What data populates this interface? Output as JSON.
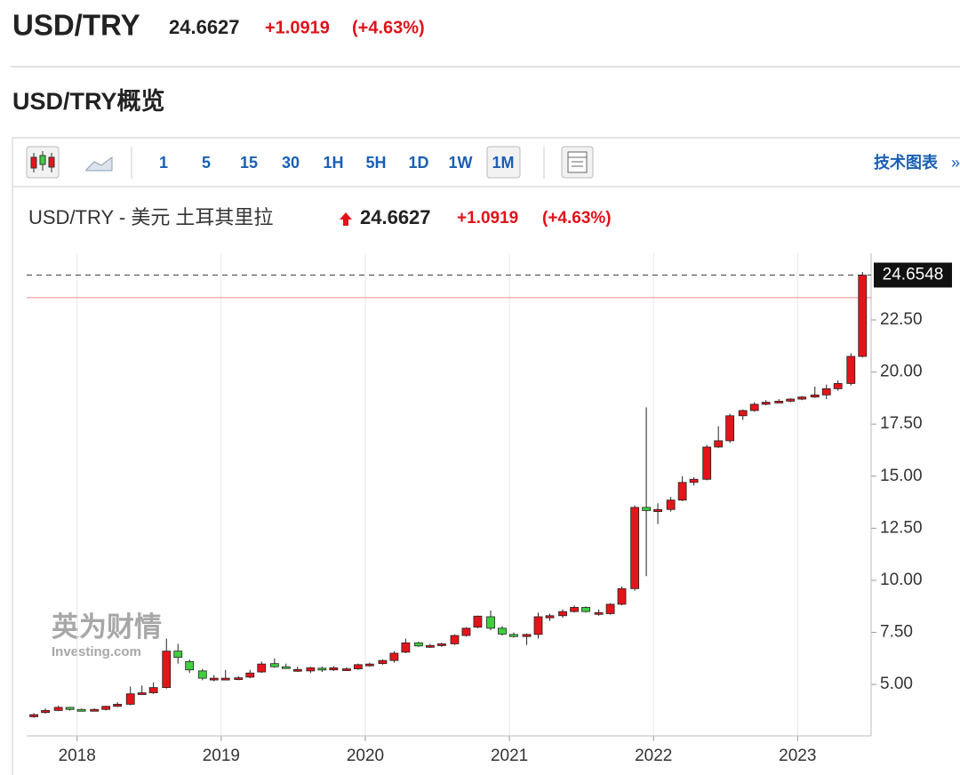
{
  "header": {
    "symbol": "USD/TRY",
    "price": "24.6627",
    "change": "+1.0919",
    "change_pct": "(+4.63%)"
  },
  "section_title": "USD/TRY概览",
  "toolbar": {
    "intervals": [
      "1",
      "5",
      "15",
      "30",
      "1H",
      "5H",
      "1D",
      "1W",
      "1M"
    ],
    "active_interval": "1M",
    "link": "技术图表",
    "link_arrow": "»"
  },
  "chart_data": {
    "type": "candlestick",
    "title": "USD/TRY - 美元 土耳其里拉",
    "quote": {
      "price": "24.6627",
      "change": "+1.0919",
      "change_pct": "(+4.63%)"
    },
    "watermark": [
      "英为财情",
      "Investing.com"
    ],
    "up_color": "#e3151b",
    "down_color": "#3fcf3f",
    "grid": "x",
    "y_axis_side": "right",
    "last_price": 24.6548,
    "ref_line": 23.57,
    "xlim": [
      2017.65,
      2023.51
    ],
    "xticks": [
      2018,
      2019,
      2020,
      2021,
      2022,
      2023
    ],
    "ylim": [
      2.53,
      25.7
    ],
    "yticks": [
      {
        "value": 5,
        "label": "5.00"
      },
      {
        "value": 7.5,
        "label": "7.50"
      },
      {
        "value": 10,
        "label": "10.00"
      },
      {
        "value": 12.5,
        "label": "12.50"
      },
      {
        "value": 15,
        "label": "15.00"
      },
      {
        "value": 17.5,
        "label": "17.50"
      },
      {
        "value": 20,
        "label": "20.00"
      },
      {
        "value": 22.5,
        "label": "22.50"
      }
    ],
    "x": [
      2017.7,
      2017.78,
      2017.87,
      2017.95,
      2018.03,
      2018.12,
      2018.2,
      2018.28,
      2018.37,
      2018.45,
      2018.53,
      2018.62,
      2018.7,
      2018.78,
      2018.87,
      2018.95,
      2019.03,
      2019.12,
      2019.2,
      2019.28,
      2019.37,
      2019.45,
      2019.53,
      2019.62,
      2019.7,
      2019.78,
      2019.87,
      2019.95,
      2020.03,
      2020.12,
      2020.2,
      2020.28,
      2020.37,
      2020.45,
      2020.53,
      2020.62,
      2020.7,
      2020.78,
      2020.87,
      2020.95,
      2021.03,
      2021.12,
      2021.2,
      2021.28,
      2021.37,
      2021.45,
      2021.53,
      2021.62,
      2021.7,
      2021.78,
      2021.87,
      2021.95,
      2022.03,
      2022.12,
      2022.2,
      2022.28,
      2022.37,
      2022.45,
      2022.53,
      2022.62,
      2022.7,
      2022.78,
      2022.87,
      2022.95,
      2023.03,
      2023.12,
      2023.2,
      2023.28,
      2023.37,
      2023.45
    ],
    "open": [
      3.45,
      3.65,
      3.75,
      3.9,
      3.8,
      3.77,
      3.8,
      3.95,
      4.05,
      4.55,
      4.6,
      4.85,
      6.6,
      6.1,
      5.65,
      5.25,
      5.25,
      5.25,
      5.35,
      5.6,
      6.0,
      5.85,
      5.68,
      5.65,
      5.78,
      5.7,
      5.7,
      5.75,
      5.95,
      6.0,
      6.15,
      6.55,
      7.0,
      6.83,
      6.87,
      6.95,
      7.35,
      7.75,
      8.25,
      7.7,
      7.4,
      7.3,
      7.4,
      8.2,
      8.3,
      8.5,
      8.7,
      8.4,
      8.4,
      8.85,
      9.6,
      13.5,
      13.3,
      13.4,
      13.85,
      14.7,
      14.85,
      16.4,
      16.7,
      17.9,
      18.15,
      18.45,
      18.55,
      18.6,
      18.7,
      18.8,
      18.9,
      19.2,
      19.45,
      20.75
    ],
    "high": [
      3.62,
      3.85,
      3.98,
      3.92,
      3.84,
      3.85,
      3.98,
      4.15,
      4.9,
      4.95,
      5.1,
      7.2,
      6.95,
      6.2,
      5.75,
      5.45,
      5.7,
      5.4,
      5.7,
      6.1,
      6.25,
      6.0,
      5.85,
      5.85,
      5.85,
      5.88,
      5.82,
      6.0,
      6.05,
      6.2,
      6.6,
      7.2,
      7.05,
      6.95,
      7.0,
      7.4,
      7.75,
      8.3,
      8.55,
      7.8,
      7.5,
      7.45,
      8.45,
      8.4,
      8.6,
      8.8,
      8.75,
      8.6,
      8.9,
      9.7,
      13.6,
      18.3,
      13.7,
      14.0,
      15.0,
      14.95,
      16.5,
      17.4,
      18.0,
      18.2,
      18.55,
      18.65,
      18.7,
      18.75,
      18.85,
      19.3,
      19.4,
      19.6,
      20.9,
      24.8
    ],
    "low": [
      3.4,
      3.6,
      3.72,
      3.74,
      3.7,
      3.72,
      3.75,
      3.92,
      4.0,
      4.5,
      4.55,
      4.8,
      6.0,
      5.55,
      5.2,
      5.15,
      5.2,
      5.2,
      5.3,
      5.55,
      5.8,
      5.75,
      5.6,
      5.55,
      5.6,
      5.65,
      5.65,
      5.7,
      5.85,
      5.95,
      6.05,
      6.5,
      6.8,
      6.75,
      6.8,
      6.9,
      7.3,
      7.7,
      7.6,
      7.35,
      7.25,
      6.9,
      7.2,
      8.05,
      8.2,
      8.45,
      8.45,
      8.3,
      8.35,
      8.8,
      9.5,
      10.2,
      12.7,
      13.3,
      13.8,
      14.55,
      14.8,
      16.35,
      16.6,
      17.7,
      18.1,
      18.4,
      18.5,
      18.55,
      18.65,
      18.75,
      18.7,
      19.1,
      19.35,
      20.7
    ],
    "close": [
      3.55,
      3.75,
      3.9,
      3.8,
      3.78,
      3.8,
      3.95,
      4.05,
      4.55,
      4.6,
      4.85,
      6.6,
      6.3,
      5.7,
      5.3,
      5.3,
      5.3,
      5.32,
      5.55,
      5.98,
      5.85,
      5.78,
      5.72,
      5.8,
      5.7,
      5.8,
      5.75,
      5.95,
      5.98,
      6.15,
      6.5,
      7.0,
      6.85,
      6.87,
      6.95,
      7.35,
      7.7,
      8.28,
      7.7,
      7.42,
      7.3,
      7.4,
      8.25,
      8.3,
      8.5,
      8.7,
      8.5,
      8.45,
      8.85,
      9.6,
      13.5,
      13.35,
      13.4,
      13.85,
      14.7,
      14.85,
      16.4,
      16.7,
      17.9,
      18.15,
      18.45,
      18.55,
      18.6,
      18.7,
      18.8,
      18.9,
      19.2,
      19.45,
      20.75,
      24.65
    ]
  }
}
